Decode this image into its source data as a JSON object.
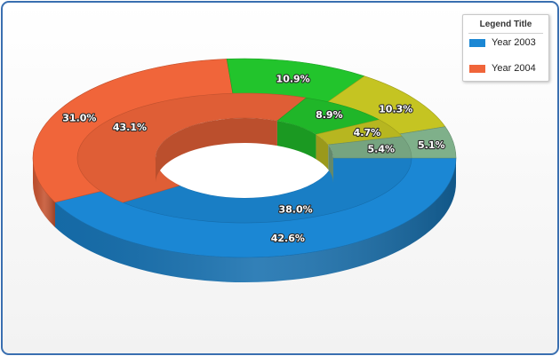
{
  "chart_data": {
    "type": "pie",
    "variant": "3d-doughnut",
    "title": "",
    "legend": {
      "title": "Legend Title",
      "placement": "top-right"
    },
    "categories": [
      "Blue",
      "Orange",
      "Green",
      "Olive",
      "Gray-green"
    ],
    "series": [
      {
        "name": "Year 2003",
        "ring": "inner",
        "values": [
          38.0,
          43.1,
          8.9,
          4.7,
          5.4
        ],
        "labels": [
          "38.0%",
          "43.1%",
          "8.9%",
          "4.7%",
          "5.4%"
        ]
      },
      {
        "name": "Year 2004",
        "ring": "outer",
        "values": [
          42.6,
          31.0,
          10.9,
          10.3,
          5.1
        ],
        "labels": [
          "42.6%",
          "31.0%",
          "10.9%",
          "10.3%",
          "5.1%"
        ]
      }
    ],
    "colors": [
      "#1b87d4",
      "#f0653a",
      "#22c42c",
      "#c5c422",
      "#7fb08a"
    ],
    "legend_colors": [
      "#1b87d4",
      "#f0653a"
    ]
  }
}
